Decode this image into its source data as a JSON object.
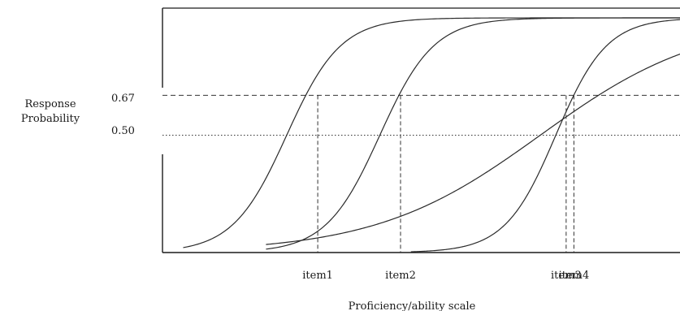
{
  "chart_data": {
    "type": "line",
    "title": "",
    "xlabel": "Proficiency/ability scale",
    "ylabel_lines": [
      "Response",
      "Probability"
    ],
    "ylim": [
      0,
      1
    ],
    "xlim": [
      0,
      10
    ],
    "y_ticks": [
      {
        "value": 0.67,
        "label": "0.67",
        "line_style": "dashed"
      },
      {
        "value": 0.5,
        "label": "0.50",
        "line_style": "dotted"
      }
    ],
    "grid": false,
    "legend": "none",
    "series": [
      {
        "a": 3.2,
        "b": 2.4,
        "x_start": 0.4
      },
      {
        "a": 3.2,
        "b": 4.2,
        "x_start": 2.0
      },
      {
        "a": 3.4,
        "b": 7.6,
        "x_start": 4.8
      },
      {
        "a": 1.05,
        "b": 7.3,
        "x_start": 2.0
      }
    ],
    "item_markers": [
      {
        "label": "item1",
        "x": 3.0
      },
      {
        "label": "item2",
        "x": 4.6
      },
      {
        "label": "item3",
        "x": 7.8
      },
      {
        "label": "item4",
        "x": 7.95
      }
    ],
    "colors": {
      "curve": "#2a2a2a",
      "axis": "#1a1a1a",
      "reference": "#333333"
    }
  }
}
